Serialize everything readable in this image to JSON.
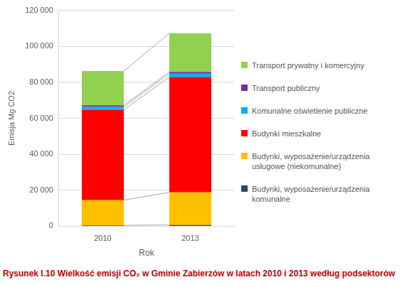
{
  "chart_data": {
    "type": "bar",
    "title": "Rysunek I.10 Wielkość emisji CO₂ w Gminie Zabierzów w latach 2010 i 2013 według podsektorów",
    "x_label": "Rok",
    "y_label": "Emisja Mg CO2",
    "categories": [
      "2010",
      "2013"
    ],
    "stacked": true,
    "legend": "right",
    "grid": true,
    "ylim": [
      0,
      120000
    ],
    "yticks": [
      0,
      {
        "value": 20000,
        "label": "20 000"
      },
      {
        "value": 40000,
        "label": "40 000"
      },
      {
        "value": 60000,
        "label": "60 000"
      },
      {
        "value": 80000,
        "label": "80 000"
      },
      {
        "value": 100000,
        "label": "100 000"
      },
      {
        "value": 120000,
        "label": "120 000"
      }
    ],
    "series": [
      {
        "name": "Budynki, wyposażenie/urządzenia komunalne",
        "color": "#1f4e79",
        "values": [
          500,
          700
        ]
      },
      {
        "name": "Budynki, wyposażenie/urządzenia usługowe (niekomunalne)",
        "color": "#ffc000",
        "values": [
          14000,
          18100
        ]
      },
      {
        "name": "Budynki mieszkalne",
        "color": "#ff0000",
        "values": [
          50200,
          64100
        ]
      },
      {
        "name": "Komunalne oświetlenie publiczne",
        "color": "#00b0f0",
        "values": [
          1600,
          1900
        ]
      },
      {
        "name": "Transport publiczny",
        "color": "#7030a0",
        "values": [
          900,
          1000
        ]
      },
      {
        "name": "Transport prywatny i komercyjny",
        "color": "#92d050",
        "values": [
          19100,
          21500
        ]
      }
    ]
  }
}
